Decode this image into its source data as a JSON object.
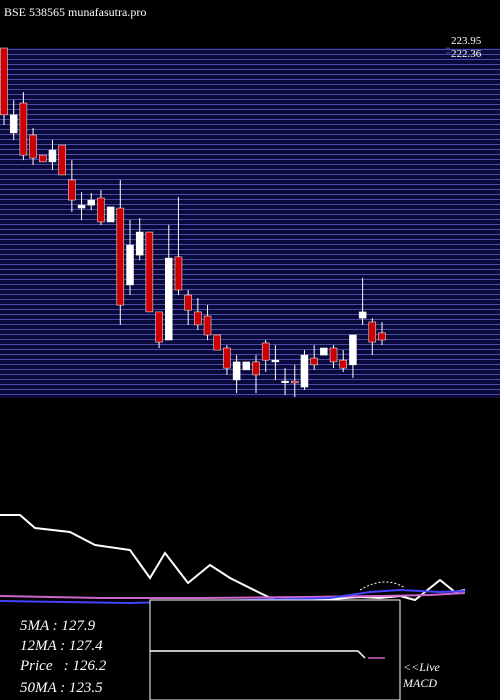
{
  "header": {
    "title": "BSE 538565 munafasutra.pro"
  },
  "chart_data": {
    "type": "candlestick",
    "ylim": [
      105.7,
      224
    ],
    "yticks": [
      {
        "value": 223.95,
        "label": "223.95"
      },
      {
        "value": 222.36,
        "label": "222.36"
      }
    ],
    "up_color": "#ffffff",
    "down_color": "#cc0000",
    "ohlc": [
      [
        224,
        224,
        198.0,
        201.4
      ],
      [
        195.3,
        206.4,
        192.9,
        201.4
      ],
      [
        205.4,
        209.1,
        186.1,
        187.8
      ],
      [
        194.6,
        197.0,
        184.5,
        186.8
      ],
      [
        187.8,
        187.8,
        185.5,
        185.5
      ],
      [
        185.5,
        192.9,
        182.8,
        189.5
      ],
      [
        191.2,
        191.2,
        181.1,
        181.1
      ],
      [
        179.4,
        186.1,
        168.6,
        172.6
      ],
      [
        169.9,
        175.3,
        165.9,
        170.9
      ],
      [
        170.9,
        175.0,
        169.2,
        172.6
      ],
      [
        173.3,
        176.0,
        164.2,
        165.2
      ],
      [
        165.2,
        170.3,
        165.2,
        170.3
      ],
      [
        169.9,
        179.4,
        130.4,
        137.1
      ],
      [
        143.9,
        165.9,
        140.5,
        157.4
      ],
      [
        154.0,
        166.5,
        152.3,
        161.8
      ],
      [
        161.8,
        161.8,
        134.8,
        134.8
      ],
      [
        134.8,
        134.8,
        122.6,
        124.6
      ],
      [
        125.3,
        164.2,
        125.3,
        153.0
      ],
      [
        153.4,
        173.6,
        140.5,
        142.2
      ],
      [
        140.5,
        142.2,
        130.4,
        135.4
      ],
      [
        134.8,
        139.5,
        128.7,
        130.4
      ],
      [
        133.4,
        137.1,
        125.3,
        127.0
      ],
      [
        127.0,
        127.0,
        121.9,
        121.9
      ],
      [
        122.6,
        123.6,
        113.5,
        115.8
      ],
      [
        111.8,
        120.2,
        107.4,
        117.9
      ],
      [
        115.2,
        117.9,
        115.2,
        117.9
      ],
      [
        117.9,
        120.2,
        107.4,
        113.5
      ],
      [
        124.3,
        125.3,
        114.5,
        118.5
      ],
      [
        117.9,
        123.6,
        111.8,
        118.5
      ],
      [
        111.1,
        115.8,
        106.7,
        111.4
      ],
      [
        111.4,
        116.9,
        106.0,
        110.8
      ],
      [
        109.4,
        121.9,
        108.4,
        120.2
      ],
      [
        119.2,
        123.6,
        115.2,
        116.9
      ],
      [
        120.2,
        122.6,
        120.2,
        122.6
      ],
      [
        122.6,
        123.6,
        115.8,
        117.9
      ],
      [
        118.5,
        121.9,
        114.5,
        115.8
      ],
      [
        116.9,
        127.0,
        112.5,
        127.0
      ],
      [
        132.7,
        146.3,
        130.4,
        134.8
      ],
      [
        131.4,
        132.7,
        120.2,
        124.6
      ],
      [
        127.7,
        131.4,
        123.6,
        125.3
      ]
    ]
  },
  "legend": [
    "5MA : 127.9",
    "12MA : 127.4",
    "Price   : 126.2",
    "50MA : 123.5"
  ],
  "macd": {
    "live": "<<Live",
    "label": "MACD"
  }
}
